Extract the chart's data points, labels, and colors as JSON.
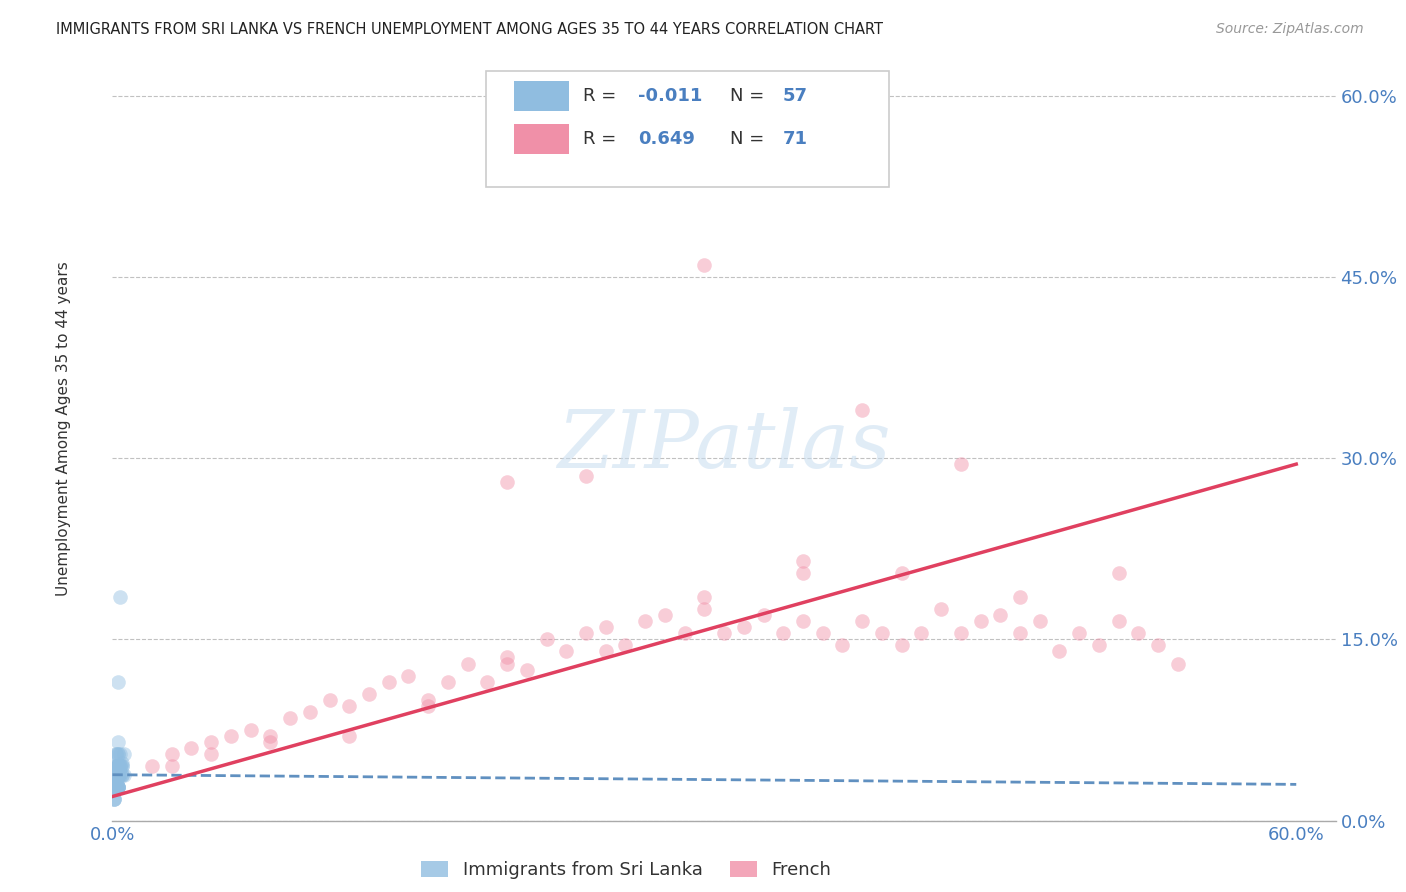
{
  "title": "IMMIGRANTS FROM SRI LANKA VS FRENCH UNEMPLOYMENT AMONG AGES 35 TO 44 YEARS CORRELATION CHART",
  "source": "Source: ZipAtlas.com",
  "ylabel": "Unemployment Among Ages 35 to 44 years",
  "legend_sri_lanka": "Immigrants from Sri Lanka",
  "legend_french": "French",
  "R_sri": "-0.011",
  "N_sri": "57",
  "R_fr": "0.649",
  "N_fr": "71",
  "blue_color": "#90bde0",
  "pink_color": "#f090a8",
  "blue_line_color": "#6090c0",
  "pink_line_color": "#e04060",
  "background_color": "#ffffff",
  "grid_color": "#bbbbbb",
  "title_color": "#222222",
  "axis_label_color": "#4a7fc0",
  "watermark_color": "#c8ddf0",
  "xlim": [
    0.0,
    0.62
  ],
  "ylim": [
    0.0,
    0.62
  ],
  "xtick_vals": [
    0.0,
    0.15,
    0.3,
    0.45,
    0.6
  ],
  "ytick_vals": [
    0.0,
    0.15,
    0.3,
    0.45,
    0.6
  ],
  "blue_scatter_x": [
    0.004,
    0.003,
    0.002,
    0.001,
    0.003,
    0.005,
    0.002,
    0.003,
    0.002,
    0.001,
    0.002,
    0.003,
    0.003,
    0.004,
    0.005,
    0.006,
    0.002,
    0.003,
    0.001,
    0.003,
    0.004,
    0.003,
    0.002,
    0.005,
    0.003,
    0.003,
    0.002,
    0.001,
    0.004,
    0.003,
    0.006,
    0.002,
    0.003,
    0.003,
    0.001,
    0.005,
    0.003,
    0.002,
    0.003,
    0.004,
    0.003,
    0.002,
    0.001,
    0.003,
    0.005,
    0.003,
    0.002,
    0.004,
    0.003,
    0.003,
    0.002,
    0.003,
    0.002,
    0.001,
    0.003,
    0.004,
    0.003
  ],
  "blue_scatter_y": [
    0.185,
    0.115,
    0.055,
    0.038,
    0.065,
    0.048,
    0.038,
    0.028,
    0.045,
    0.028,
    0.055,
    0.045,
    0.038,
    0.055,
    0.045,
    0.038,
    0.045,
    0.055,
    0.038,
    0.045,
    0.038,
    0.028,
    0.045,
    0.038,
    0.055,
    0.045,
    0.028,
    0.018,
    0.038,
    0.045,
    0.055,
    0.028,
    0.038,
    0.045,
    0.028,
    0.038,
    0.045,
    0.038,
    0.028,
    0.045,
    0.038,
    0.028,
    0.018,
    0.038,
    0.045,
    0.028,
    0.038,
    0.045,
    0.038,
    0.028,
    0.028,
    0.038,
    0.028,
    0.018,
    0.038,
    0.045,
    0.028
  ],
  "pink_scatter_x": [
    0.02,
    0.03,
    0.04,
    0.05,
    0.06,
    0.07,
    0.08,
    0.09,
    0.1,
    0.11,
    0.12,
    0.13,
    0.14,
    0.15,
    0.16,
    0.17,
    0.18,
    0.19,
    0.2,
    0.21,
    0.22,
    0.23,
    0.24,
    0.25,
    0.26,
    0.27,
    0.28,
    0.29,
    0.3,
    0.31,
    0.32,
    0.33,
    0.34,
    0.35,
    0.36,
    0.37,
    0.38,
    0.39,
    0.4,
    0.41,
    0.42,
    0.43,
    0.44,
    0.45,
    0.46,
    0.47,
    0.48,
    0.49,
    0.5,
    0.51,
    0.52,
    0.53,
    0.54,
    0.03,
    0.05,
    0.08,
    0.12,
    0.16,
    0.2,
    0.25,
    0.3,
    0.35,
    0.4,
    0.46,
    0.51,
    0.24,
    0.38,
    0.43,
    0.3,
    0.2,
    0.35
  ],
  "pink_scatter_y": [
    0.045,
    0.055,
    0.06,
    0.065,
    0.07,
    0.075,
    0.065,
    0.085,
    0.09,
    0.1,
    0.095,
    0.105,
    0.115,
    0.12,
    0.1,
    0.115,
    0.13,
    0.115,
    0.135,
    0.125,
    0.15,
    0.14,
    0.155,
    0.16,
    0.145,
    0.165,
    0.17,
    0.155,
    0.175,
    0.155,
    0.16,
    0.17,
    0.155,
    0.165,
    0.155,
    0.145,
    0.165,
    0.155,
    0.145,
    0.155,
    0.175,
    0.155,
    0.165,
    0.17,
    0.155,
    0.165,
    0.14,
    0.155,
    0.145,
    0.165,
    0.155,
    0.145,
    0.13,
    0.045,
    0.055,
    0.07,
    0.07,
    0.095,
    0.13,
    0.14,
    0.185,
    0.205,
    0.205,
    0.185,
    0.205,
    0.285,
    0.34,
    0.295,
    0.46,
    0.28,
    0.215
  ],
  "blue_line_x": [
    0.0,
    0.6
  ],
  "blue_line_y": [
    0.038,
    0.03
  ],
  "pink_line_x": [
    0.0,
    0.6
  ],
  "pink_line_y": [
    0.02,
    0.295
  ],
  "scatter_size": 110,
  "scatter_alpha": 0.45,
  "watermark": "ZIPatlas"
}
